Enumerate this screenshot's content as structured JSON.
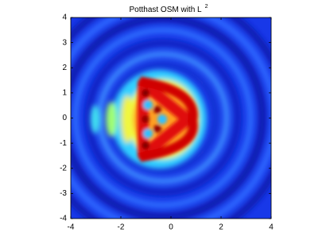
{
  "chart_data": {
    "type": "image",
    "title": "Potthast OSM with L",
    "title_superscript": "2",
    "xlim": [
      -4,
      4
    ],
    "xticks": [
      -4,
      -2,
      0,
      2,
      4
    ],
    "ylim": [
      -4,
      4
    ],
    "yticks": [
      -4,
      -3,
      -2,
      -1,
      0,
      1,
      2,
      3,
      4
    ]
  }
}
